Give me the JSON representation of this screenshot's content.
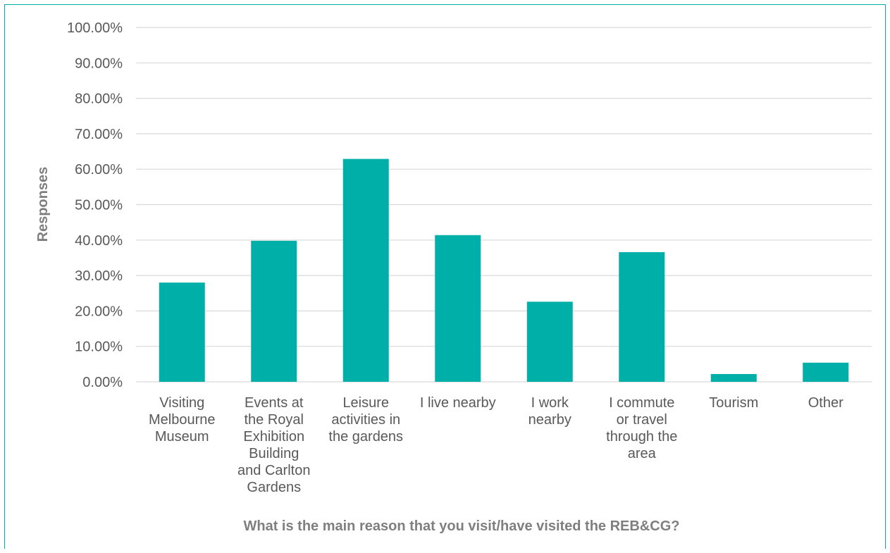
{
  "chart_data": {
    "type": "bar",
    "title": "",
    "xlabel": "What is the main reason that you visit/have visited the REB&CG?",
    "ylabel": "Responses",
    "categories": [
      [
        "Visiting",
        "Melbourne",
        "Museum"
      ],
      [
        "Events at",
        "the Royal",
        "Exhibition",
        "Building",
        "and Carlton",
        "Gardens"
      ],
      [
        "Leisure",
        "activities in",
        "the gardens"
      ],
      [
        "I live nearby"
      ],
      [
        "I work",
        "nearby"
      ],
      [
        "I commute",
        "or travel",
        "through the",
        "area"
      ],
      [
        "Tourism"
      ],
      [
        "Other"
      ]
    ],
    "values": [
      28.0,
      39.8,
      62.9,
      41.4,
      22.6,
      36.6,
      2.2,
      5.4
    ],
    "ylim": [
      0,
      100
    ],
    "yticks": [
      "0.00%",
      "10.00%",
      "20.00%",
      "30.00%",
      "40.00%",
      "50.00%",
      "60.00%",
      "70.00%",
      "80.00%",
      "90.00%",
      "100.00%"
    ],
    "grid": true,
    "legend": "none",
    "bar_color": "#00b0a8",
    "grid_color": "#d9d9d9",
    "text_color": "#595959",
    "title_color": "#7f7f7f"
  }
}
